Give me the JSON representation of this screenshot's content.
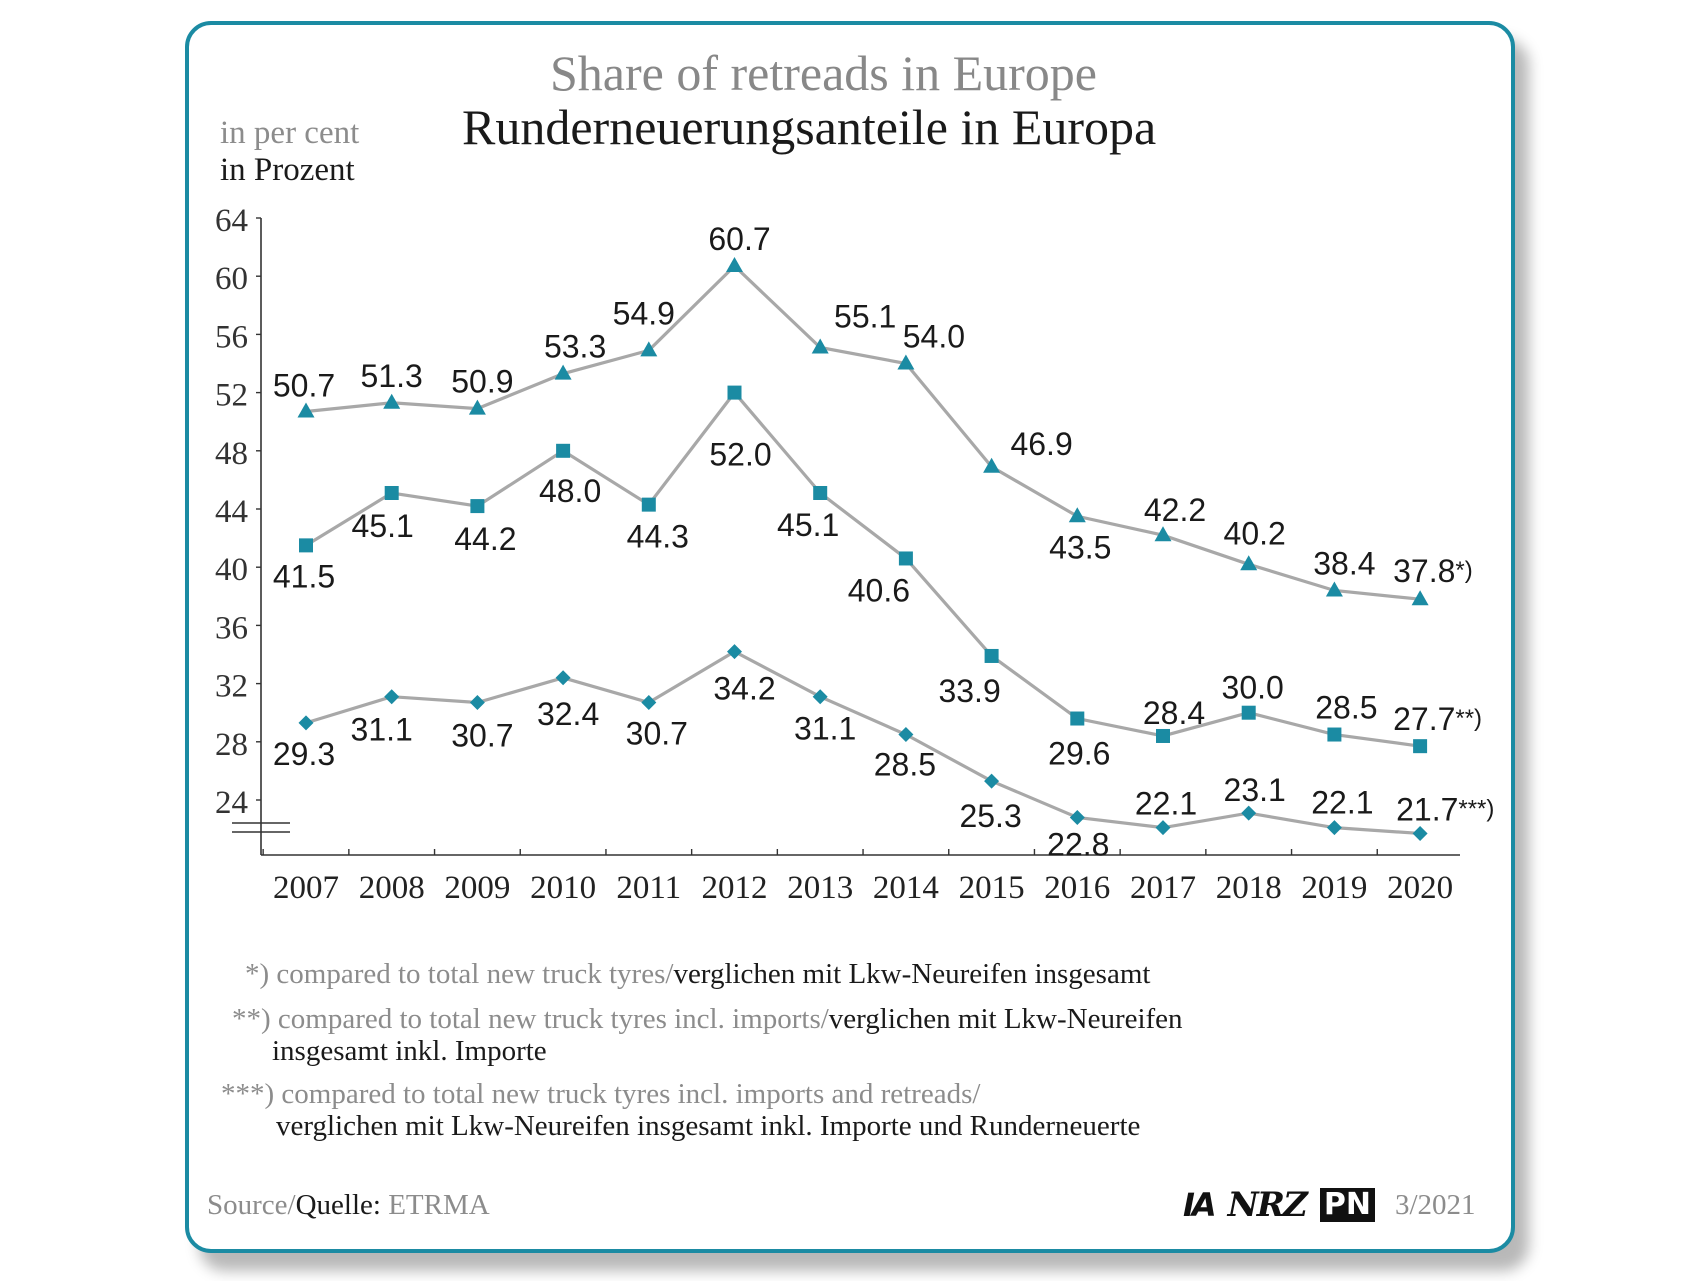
{
  "title_en": "Share of retreads in Europe",
  "title_de": "Runderneuerungsanteile in Europa",
  "unit_en": "in per cent",
  "unit_de": "in Prozent",
  "chart_data": {
    "type": "line",
    "x": [
      "2007",
      "2008",
      "2009",
      "2010",
      "2011",
      "2012",
      "2013",
      "2014",
      "2015",
      "2016",
      "2017",
      "2018",
      "2019",
      "2020"
    ],
    "ylim": [
      20,
      64
    ],
    "yticks": [
      24,
      28,
      32,
      36,
      40,
      44,
      48,
      52,
      56,
      60,
      64
    ],
    "axis_break": true,
    "grid": false,
    "colors": {
      "marker": "#1b8ba3",
      "line": "#a8a8a8"
    },
    "series": [
      {
        "marker": "triangle",
        "values": [
          50.7,
          51.3,
          50.9,
          53.3,
          54.9,
          60.7,
          55.1,
          54.0,
          46.9,
          43.5,
          42.2,
          40.2,
          38.4,
          37.8
        ],
        "labels": [
          "50.7",
          "51.3",
          "50.9",
          "53.3",
          "54.9",
          "60.7",
          "55.1",
          "54.0",
          "46.9",
          "43.5",
          "42.2",
          "40.2",
          "38.4",
          "37.8"
        ],
        "note": "*)"
      },
      {
        "marker": "square",
        "values": [
          41.5,
          45.1,
          44.2,
          48.0,
          44.3,
          52.0,
          45.1,
          40.6,
          33.9,
          29.6,
          28.4,
          30.0,
          28.5,
          27.7
        ],
        "labels": [
          "41.5",
          "45.1",
          "44.2",
          "48.0",
          "44.3",
          "52.0",
          "45.1",
          "40.6",
          "33.9",
          "29.6",
          "28.4",
          "30.0",
          "28.5",
          "27.7"
        ],
        "note": "**)"
      },
      {
        "marker": "diamond",
        "values": [
          29.3,
          31.1,
          30.7,
          32.4,
          30.7,
          34.2,
          31.1,
          28.5,
          25.3,
          22.8,
          22.1,
          23.1,
          22.1,
          21.7
        ],
        "labels": [
          "29.3",
          "31.1",
          "30.7",
          "32.4",
          "30.7",
          "34.2",
          "31.1",
          "28.5",
          "25.3",
          "22.8",
          "22.1",
          "23.1",
          "22.1",
          "21.7"
        ],
        "note": "***)"
      }
    ]
  },
  "footnotes": [
    {
      "mark": "*)",
      "en": "compared to total new truck tyres/",
      "de": "verglichen mit Lkw-Neureifen insgesamt"
    },
    {
      "mark": "**)",
      "en": "compared to total new truck tyres incl. imports/",
      "de": "verglichen mit Lkw-Neureifen",
      "de_cont": "insgesamt inkl. Importe"
    },
    {
      "mark": "***)",
      "en": "compared to total new truck tyres incl. imports and retreads/",
      "de": "verglichen mit Lkw-Neureifen insgesamt inkl. Importe und Runderneuerte"
    }
  ],
  "source": {
    "label_en": "Source/",
    "label_de": "Quelle",
    "colon": ": ",
    "value": "ETRMA"
  },
  "logos": {
    "ia": "IA",
    "nrz": "NRZ",
    "pn": "PN"
  },
  "edition": "3/2021"
}
